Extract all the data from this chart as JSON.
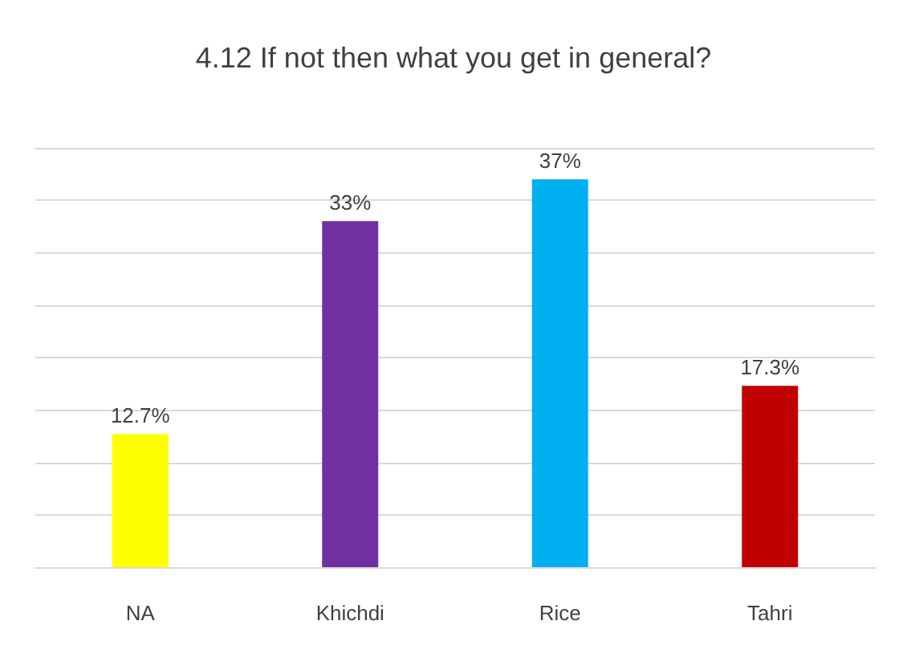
{
  "chart_data": {
    "type": "bar",
    "title": "4.12 If not then what you get in general?",
    "categories": [
      "NA",
      "Khichdi",
      "Rice",
      "Tahri"
    ],
    "values": [
      12.7,
      33,
      37,
      17.3
    ],
    "colors": [
      "#ffff00",
      "#7030a0",
      "#00b0f0",
      "#c00000"
    ],
    "value_labels": [
      "12.7%",
      "33%",
      "37%",
      "17.3%"
    ],
    "ylim": [
      0,
      40
    ],
    "yticks": [
      {
        "value": 0,
        "label": null
      },
      {
        "value": 5,
        "label": null
      },
      {
        "value": 10,
        "label": null
      },
      {
        "value": 15,
        "label": null
      },
      {
        "value": 20,
        "label": null
      },
      {
        "value": 25,
        "label": null
      },
      {
        "value": 30,
        "label": null
      },
      {
        "value": 35,
        "label": null
      },
      {
        "value": 40,
        "label": null
      }
    ],
    "tick_labels": "x",
    "grid": "y"
  }
}
